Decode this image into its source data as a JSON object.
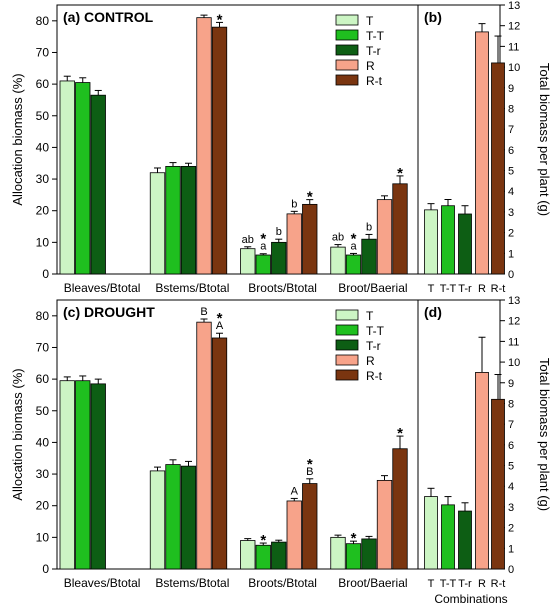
{
  "colors": {
    "T": "#ccf5c4",
    "T-T": "#1fbf1f",
    "T-r": "#0d5e14",
    "R": "#f7a38a",
    "R-t": "#7a3510",
    "axis": "#000000"
  },
  "chart_data": [
    {
      "id": "a",
      "type": "bar",
      "title": "(a)  CONTROL",
      "ylabel": "Allocation biomass (%)",
      "ylim": [
        0,
        85
      ],
      "yticks": [
        0,
        10,
        20,
        30,
        40,
        50,
        60,
        70,
        80
      ],
      "categories": [
        "Bleaves/Btotal",
        "Bstems/Btotal",
        "Broots/Btotal",
        "Broot/Baerial"
      ],
      "legend": [
        "T",
        "T-T",
        "T-r",
        "R",
        "R-t"
      ],
      "legend_position": "top-right",
      "series": [
        {
          "name": "T",
          "values": [
            61,
            32,
            8,
            8.5
          ],
          "errors": [
            1.5,
            1.5,
            0.6,
            0.8
          ]
        },
        {
          "name": "T-T",
          "values": [
            60.5,
            34,
            6,
            6
          ],
          "errors": [
            1.5,
            1.2,
            0.4,
            0.5
          ]
        },
        {
          "name": "T-r",
          "values": [
            56.5,
            34,
            10,
            11
          ],
          "errors": [
            1.5,
            1.0,
            1.0,
            1.5
          ]
        },
        {
          "name": "R",
          "values": [
            null,
            81,
            19,
            23.5
          ],
          "errors": [
            0,
            0.8,
            0.8,
            1.2
          ]
        },
        {
          "name": "R-t",
          "values": [
            null,
            78,
            22,
            28.5
          ],
          "errors": [
            0,
            1.5,
            1.5,
            2.5
          ]
        }
      ],
      "annotations": [
        {
          "category": 1,
          "series": 4,
          "text": "*"
        },
        {
          "category": 2,
          "series": 0,
          "text": "ab"
        },
        {
          "category": 2,
          "series": 1,
          "text": "a"
        },
        {
          "category": 2,
          "series": 1,
          "text": "*"
        },
        {
          "category": 2,
          "series": 2,
          "text": "b"
        },
        {
          "category": 2,
          "series": 3,
          "text": "b"
        },
        {
          "category": 2,
          "series": 4,
          "text": "*"
        },
        {
          "category": 3,
          "series": 0,
          "text": "ab"
        },
        {
          "category": 3,
          "series": 1,
          "text": "a"
        },
        {
          "category": 3,
          "series": 1,
          "text": "*"
        },
        {
          "category": 3,
          "series": 2,
          "text": "b"
        },
        {
          "category": 3,
          "series": 4,
          "text": "*"
        }
      ]
    },
    {
      "id": "b",
      "type": "bar",
      "title": "(b)",
      "ylabel": "Total biomass per plant (g)",
      "ylim": [
        0,
        13
      ],
      "yticks": [
        0,
        1,
        2,
        3,
        4,
        5,
        6,
        7,
        8,
        9,
        10,
        11,
        12,
        13
      ],
      "categories": [
        "T",
        "T-T",
        "T-r",
        "R",
        "R-t"
      ],
      "values": [
        3.1,
        3.3,
        2.9,
        11.7,
        10.2
      ],
      "errors": [
        0.3,
        0.3,
        0.4,
        0.4,
        1.3
      ]
    },
    {
      "id": "c",
      "type": "bar",
      "title": "(c)  DROUGHT",
      "ylabel": "Allocation biomass (%)",
      "ylim": [
        0,
        85
      ],
      "yticks": [
        0,
        10,
        20,
        30,
        40,
        50,
        60,
        70,
        80
      ],
      "categories": [
        "Bleaves/Btotal",
        "Bstems/Btotal",
        "Broots/Btotal",
        "Broot/Baerial"
      ],
      "legend": [
        "T",
        "T-T",
        "T-r",
        "R",
        "R-t"
      ],
      "legend_position": "top-right",
      "series": [
        {
          "name": "T",
          "values": [
            59.5,
            31,
            9,
            10
          ],
          "errors": [
            1.2,
            1.2,
            0.6,
            0.7
          ]
        },
        {
          "name": "T-T",
          "values": [
            59.5,
            33,
            7.5,
            8
          ],
          "errors": [
            1.5,
            1.5,
            0.7,
            0.8
          ]
        },
        {
          "name": "T-r",
          "values": [
            58.5,
            32.5,
            8.5,
            9.5
          ],
          "errors": [
            1.5,
            1.5,
            0.6,
            0.8
          ]
        },
        {
          "name": "R",
          "values": [
            null,
            78,
            21.5,
            28
          ],
          "errors": [
            0,
            1.0,
            0.8,
            1.5
          ]
        },
        {
          "name": "R-t",
          "values": [
            null,
            73,
            27,
            38
          ],
          "errors": [
            0,
            1.5,
            1.5,
            4.0
          ]
        }
      ],
      "annotations": [
        {
          "category": 1,
          "series": 3,
          "text": "B"
        },
        {
          "category": 1,
          "series": 4,
          "text": "A"
        },
        {
          "category": 1,
          "series": 4,
          "text": "*"
        },
        {
          "category": 2,
          "series": 1,
          "text": "*"
        },
        {
          "category": 2,
          "series": 3,
          "text": "A"
        },
        {
          "category": 2,
          "series": 4,
          "text": "B"
        },
        {
          "category": 2,
          "series": 4,
          "text": "*"
        },
        {
          "category": 3,
          "series": 1,
          "text": "*"
        },
        {
          "category": 3,
          "series": 4,
          "text": "*"
        }
      ]
    },
    {
      "id": "d",
      "type": "bar",
      "title": "(d)",
      "xlabel": "Combinations",
      "ylabel": "Total biomass per plant (g)",
      "ylim": [
        0,
        13
      ],
      "yticks": [
        0,
        1,
        2,
        3,
        4,
        5,
        6,
        7,
        8,
        9,
        10,
        11,
        12,
        13
      ],
      "categories": [
        "T",
        "T-T",
        "T-r",
        "R",
        "R-t"
      ],
      "values": [
        3.5,
        3.1,
        2.8,
        9.5,
        8.2
      ],
      "errors": [
        0.4,
        0.4,
        0.4,
        1.7,
        1.2
      ]
    }
  ]
}
